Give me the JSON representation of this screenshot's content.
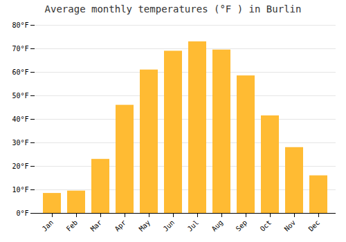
{
  "chart_data": {
    "type": "bar",
    "title": "Average monthly temperatures (°F ) in Burlin",
    "categories": [
      "Jan",
      "Feb",
      "Mar",
      "Apr",
      "May",
      "Jun",
      "Jul",
      "Aug",
      "Sep",
      "Oct",
      "Nov",
      "Dec"
    ],
    "values": [
      8.5,
      9.5,
      23,
      46,
      61,
      69,
      73,
      69.5,
      58.5,
      41.5,
      28,
      16
    ],
    "color": "#FFBB33",
    "ylim": [
      0,
      80
    ],
    "yticks": [
      {
        "value": 0,
        "label": "0°F"
      },
      {
        "value": 10,
        "label": "10°F"
      },
      {
        "value": 20,
        "label": "20°F"
      },
      {
        "value": 30,
        "label": "30°F"
      },
      {
        "value": 40,
        "label": "40°F"
      },
      {
        "value": 50,
        "label": "50°F"
      },
      {
        "value": 60,
        "label": "60°F"
      },
      {
        "value": 70,
        "label": "70°F"
      },
      {
        "value": 80,
        "label": "80°F"
      }
    ],
    "grid": true
  }
}
